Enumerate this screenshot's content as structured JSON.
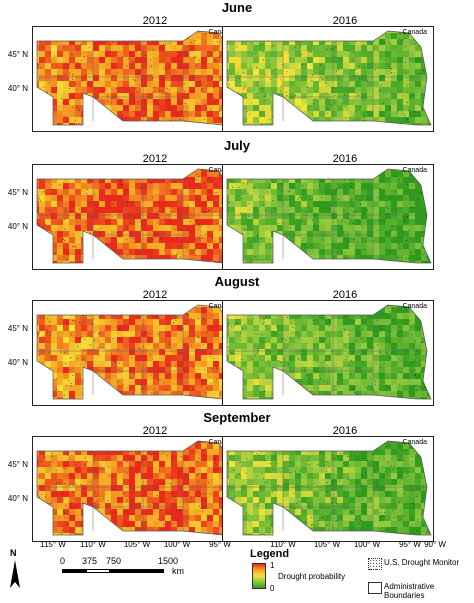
{
  "months": [
    {
      "name": "June",
      "left_year": "2012",
      "right_year": "2016"
    },
    {
      "name": "July",
      "left_year": "2012",
      "right_year": "2016"
    },
    {
      "name": "August",
      "left_year": "2012",
      "right_year": "2016"
    },
    {
      "name": "September",
      "left_year": "2012",
      "right_year": "2016"
    }
  ],
  "map_label": "Canada",
  "lat_labels": [
    "45° N",
    "40° N"
  ],
  "lon_labels": [
    "115° W",
    "110° W",
    "105° W",
    "100° W",
    "95° W",
    "90° W"
  ],
  "scale": {
    "ticks": [
      "0",
      "375",
      "750",
      "1500"
    ],
    "unit": "km"
  },
  "north_label": "N",
  "legend": {
    "title": "Legend",
    "max_label": "1",
    "min_label": "0",
    "probability_label": "Drought probability",
    "monitor_label": "U.S. Drought Monitor",
    "boundaries_label": "Administrative Boundaries",
    "colors": {
      "high": "#e8291c",
      "mid": "#f5e33a",
      "low": "#2e9b1f"
    }
  },
  "drought_level": {
    "2012": [
      0.78,
      0.82,
      0.76,
      0.8
    ],
    "2016": [
      0.42,
      0.3,
      0.34,
      0.36
    ]
  }
}
